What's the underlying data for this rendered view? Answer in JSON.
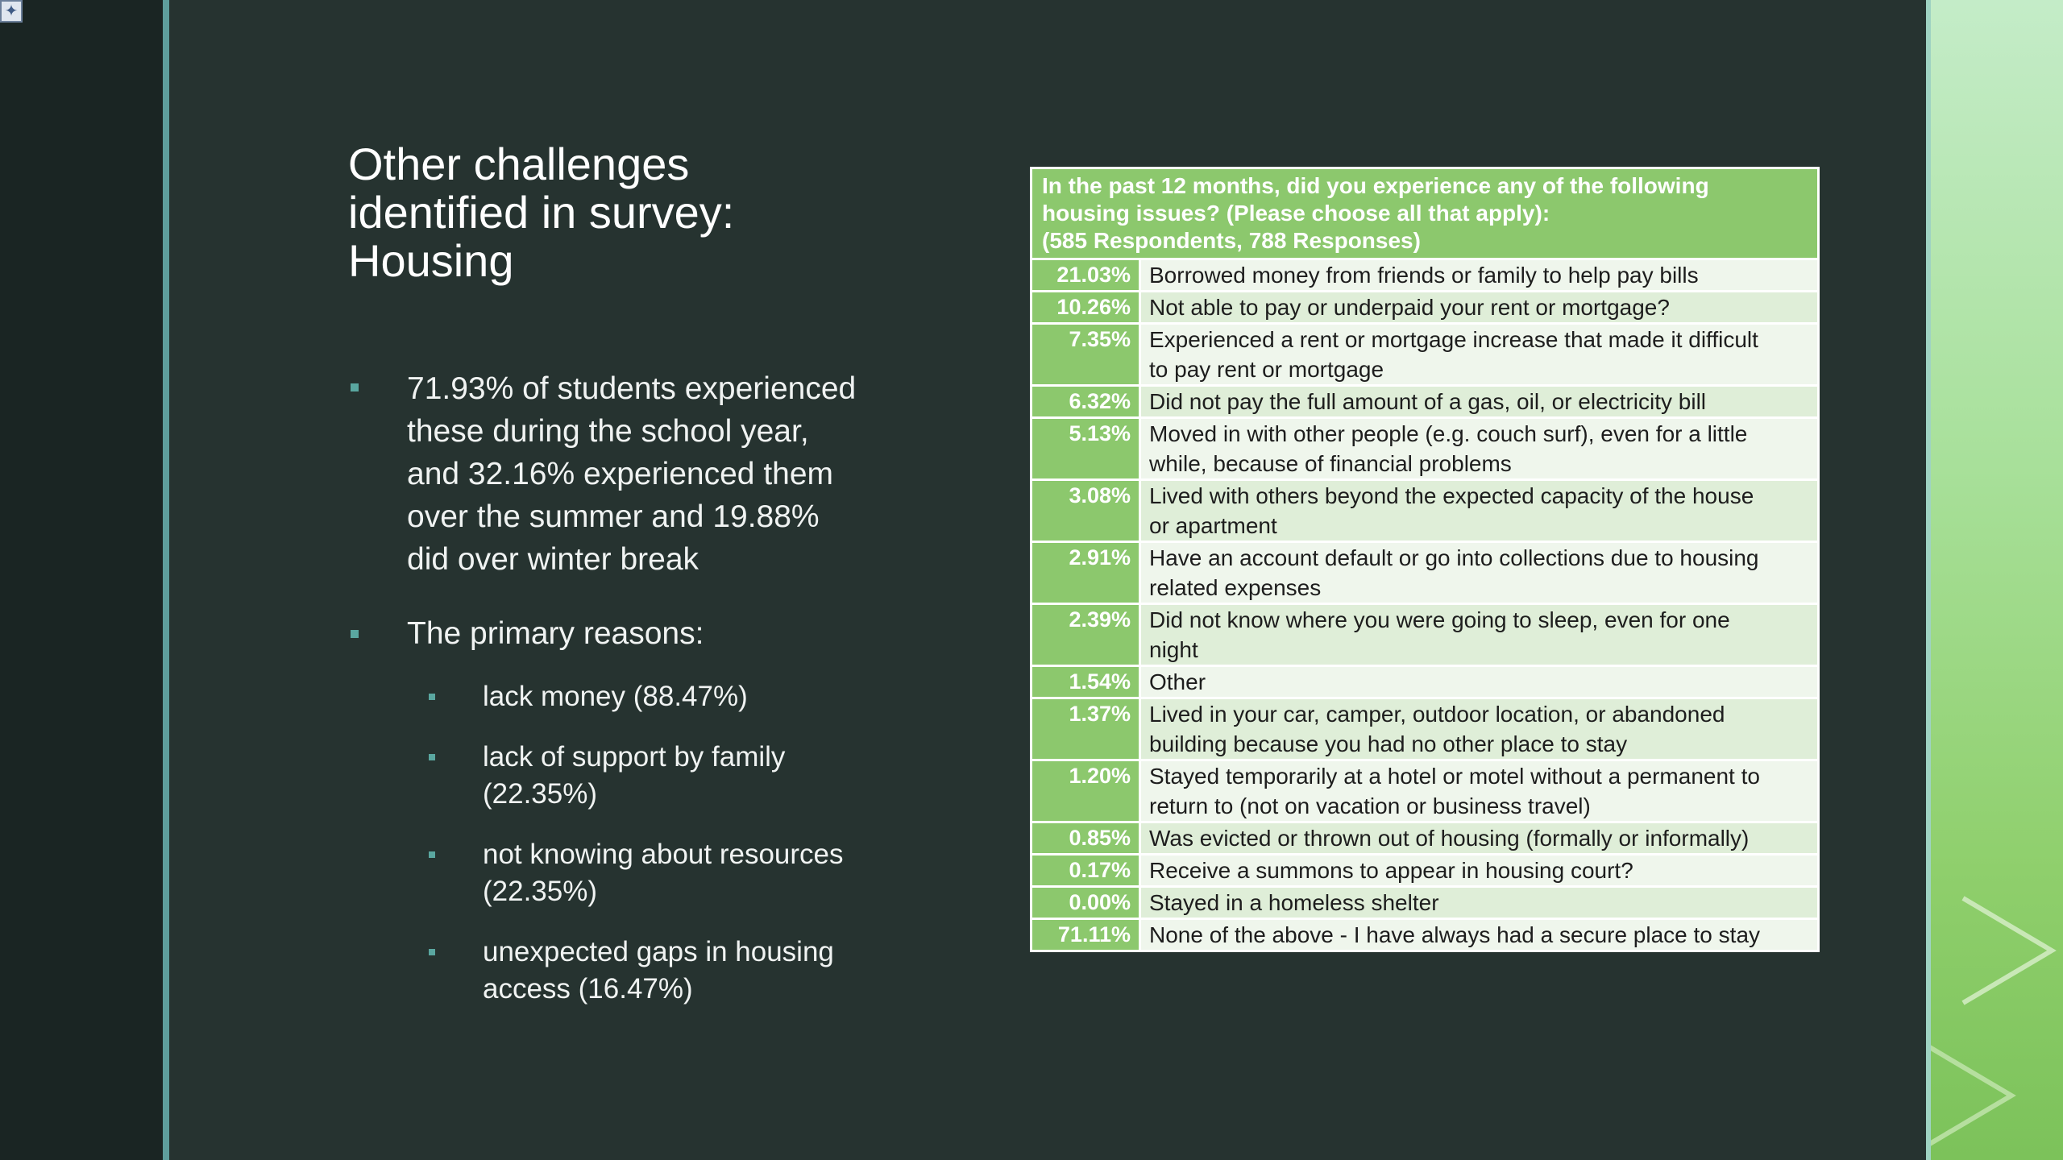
{
  "slide": {
    "title_lines": [
      "Other challenges",
      "identified in survey:",
      "Housing"
    ],
    "bullets": {
      "b1": [
        "71.93% of students experienced",
        "these during the school year,",
        "and 32.16% experienced them",
        "over the summer and 19.88%",
        "did over winter break"
      ],
      "b2": "The primary reasons:",
      "sub": [
        [
          "lack money (88.47%)"
        ],
        [
          "lack of support by family",
          "(22.35%)"
        ],
        [
          "not knowing about resources",
          "(22.35%)"
        ],
        [
          "unexpected gaps in housing",
          "access (16.47%)"
        ]
      ]
    }
  },
  "table": {
    "header_lines": [
      "In the past 12 months, did you experience any of the following",
      "housing issues? (Please choose all that apply):",
      "(585 Respondents, 788 Responses)"
    ],
    "rows": [
      {
        "pct": "21.03%",
        "lines": [
          "Borrowed money from friends or family to help pay bills"
        ]
      },
      {
        "pct": "10.26%",
        "lines": [
          "Not able to pay or underpaid your rent or mortgage?"
        ]
      },
      {
        "pct": "7.35%",
        "lines": [
          "Experienced a rent or mortgage increase that made it difficult",
          "to pay rent or mortgage"
        ]
      },
      {
        "pct": "6.32%",
        "lines": [
          "Did not pay the full amount of a gas, oil, or electricity bill"
        ]
      },
      {
        "pct": "5.13%",
        "lines": [
          "Moved in with other people (e.g. couch surf), even for a little",
          "while, because of financial problems"
        ]
      },
      {
        "pct": "3.08%",
        "lines": [
          "Lived with others beyond the expected capacity of the house",
          "or apartment"
        ]
      },
      {
        "pct": "2.91%",
        "lines": [
          "Have an account default or go into collections due to housing",
          "related expenses"
        ]
      },
      {
        "pct": "2.39%",
        "lines": [
          "Did not know where you were going to sleep, even for one",
          "night"
        ]
      },
      {
        "pct": "1.54%",
        "lines": [
          "Other"
        ]
      },
      {
        "pct": "1.37%",
        "lines": [
          "Lived in your car, camper, outdoor location, or abandoned",
          "building because you had no other place to stay"
        ]
      },
      {
        "pct": "1.20%",
        "lines": [
          "Stayed temporarily at a hotel or motel without a permanent to",
          "return to (not on vacation or business travel)"
        ]
      },
      {
        "pct": "0.85%",
        "lines": [
          "Was evicted or thrown out of housing (formally or informally)"
        ]
      },
      {
        "pct": "0.17%",
        "lines": [
          "Receive a summons to appear in housing court?"
        ]
      },
      {
        "pct": "0.00%",
        "lines": [
          "Stayed in a homeless shelter"
        ]
      },
      {
        "pct": "71.11%",
        "lines": [
          "None of the above - I have always had a secure place to stay"
        ]
      }
    ]
  },
  "colors": {
    "slide_bg": "#263330",
    "accent_teal": "#5aa7a0",
    "table_green": "#8cc86d",
    "table_row_light": "#eff6ec",
    "table_row_alt": "#dfeed8"
  },
  "icons": {
    "corner": "slide-thumbnail-icon",
    "decor": "chevron-right-icon"
  }
}
